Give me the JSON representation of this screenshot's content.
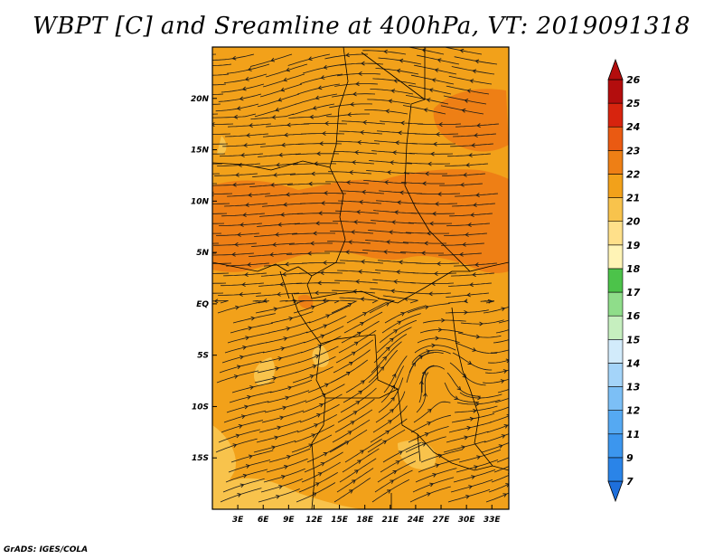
{
  "title": "WBPT [C] and Sreamline at 400hPa, VT: 2019091318",
  "footer": "GrADS: IGES/COLA",
  "map": {
    "projection": "lat-lon",
    "lon_range": [
      0,
      35
    ],
    "lat_range": [
      -20,
      25
    ],
    "lon_ticks": [
      "3E",
      "6E",
      "9E",
      "12E",
      "15E",
      "18E",
      "21E",
      "24E",
      "27E",
      "30E",
      "33E"
    ],
    "lat_ticks": [
      "20N",
      "15N",
      "10N",
      "5N",
      "EQ",
      "5S",
      "10S",
      "15S"
    ]
  },
  "colorbar": {
    "labels": [
      "7",
      "9",
      "11",
      "12",
      "13",
      "14",
      "15",
      "16",
      "17",
      "18",
      "19",
      "20",
      "21",
      "22",
      "23",
      "24",
      "25",
      "26"
    ],
    "colors": [
      "#1e6fdc",
      "#2a84e8",
      "#3c96ee",
      "#55a9f2",
      "#7cbff6",
      "#a4d4f9",
      "#d2ebfb",
      "#c6efbf",
      "#8fdd8a",
      "#4cc34a",
      "#fff4b6",
      "#ffe08a",
      "#f8c34c",
      "#f2a11a",
      "#ee7f15",
      "#ea5a12",
      "#d7240e",
      "#b30d0d"
    ]
  },
  "colors": {
    "field_base": "#f2a11a",
    "field_warm": "#ee7f15",
    "field_cool": "#f8c34c",
    "streamline": "#1a1a1a"
  }
}
